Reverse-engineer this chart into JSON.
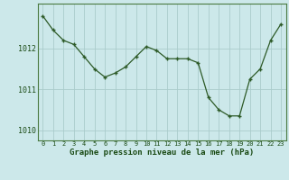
{
  "x": [
    0,
    1,
    2,
    3,
    4,
    5,
    6,
    7,
    8,
    9,
    10,
    11,
    12,
    13,
    14,
    15,
    16,
    17,
    18,
    19,
    20,
    21,
    22,
    23
  ],
  "y": [
    1012.8,
    1012.45,
    1012.2,
    1012.1,
    1011.8,
    1011.5,
    1011.3,
    1011.4,
    1011.55,
    1011.8,
    1012.05,
    1011.95,
    1011.75,
    1011.75,
    1011.75,
    1011.65,
    1010.8,
    1010.5,
    1010.35,
    1010.35,
    1011.25,
    1011.5,
    1012.2,
    1012.6
  ],
  "line_color": "#2d5a27",
  "marker": "+",
  "bg_color": "#cce8ea",
  "grid_color": "#aacccc",
  "xlabel": "Graphe pression niveau de la mer (hPa)",
  "yticks": [
    1010,
    1011,
    1012
  ],
  "ylim": [
    1009.75,
    1013.1
  ],
  "xlim": [
    -0.5,
    23.5
  ],
  "xlabel_color": "#1a4a14",
  "tick_color": "#1a4a14",
  "border_color": "#4a7a40",
  "markersize": 3.5,
  "linewidth": 0.9
}
